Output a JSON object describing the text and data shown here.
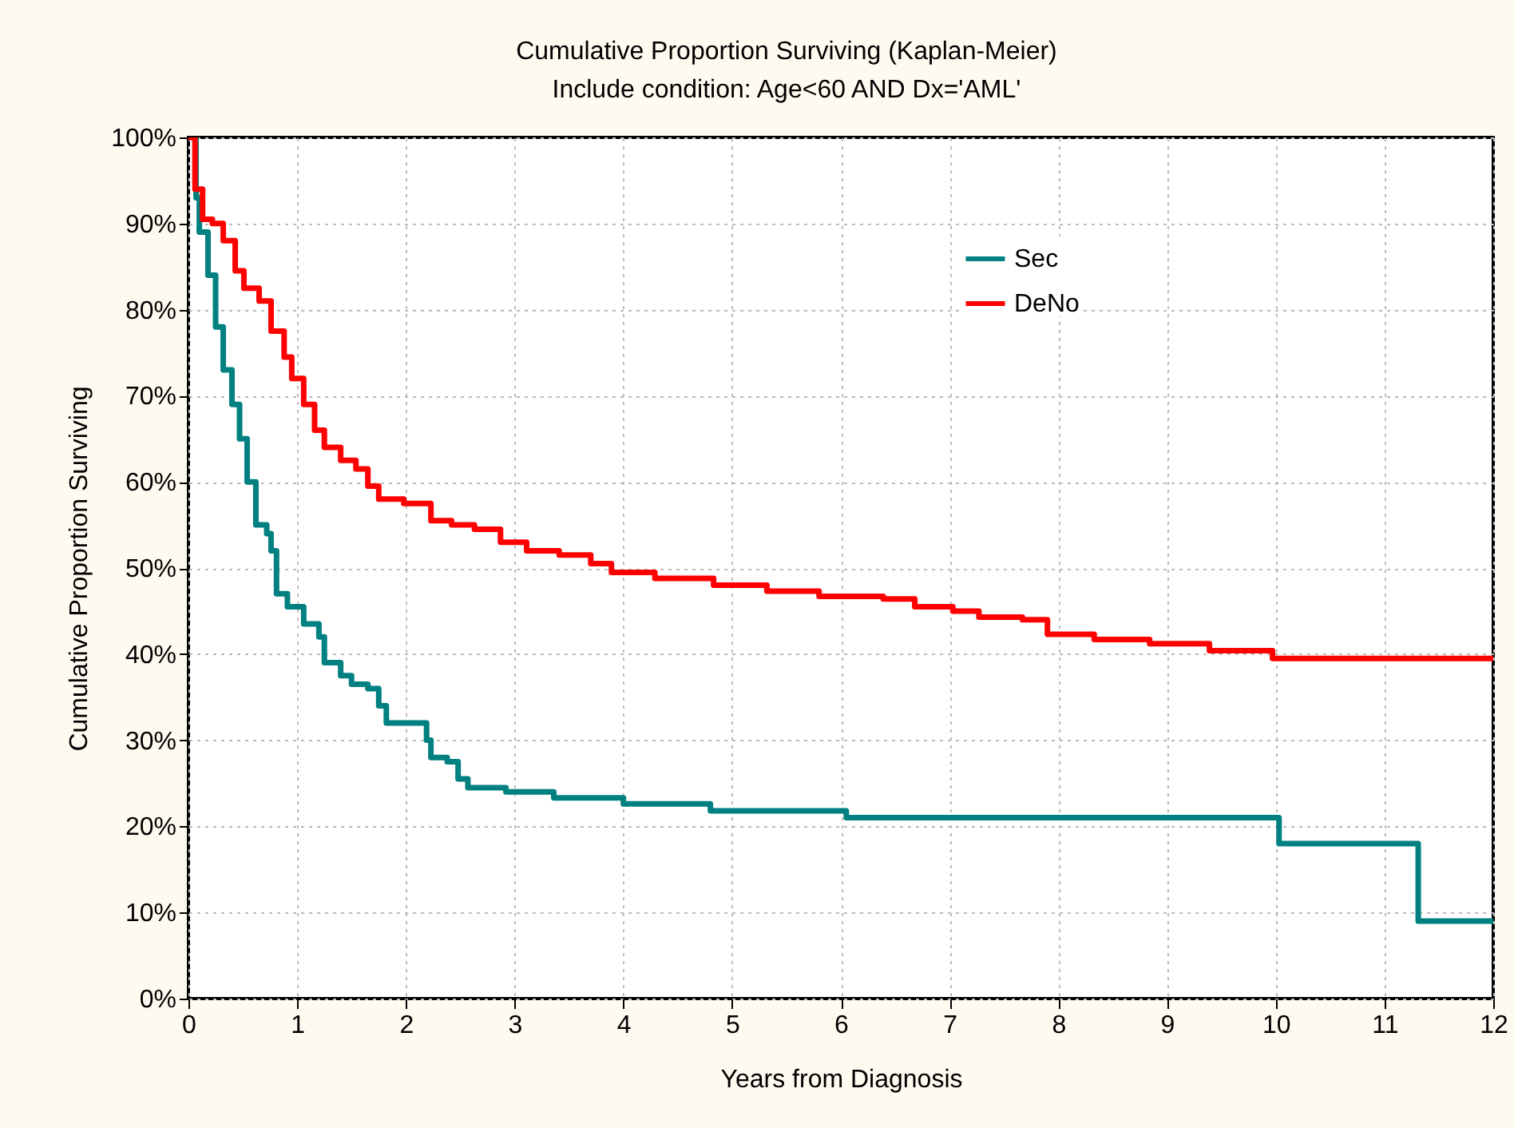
{
  "chart_data": {
    "type": "step",
    "title": "Cumulative Proportion Surviving (Kaplan-Meier)",
    "subtitle": "Include condition: Age<60 AND Dx='AML'",
    "xlabel": "Years from Diagnosis",
    "ylabel": "Cumulative Proportion Surviving",
    "xlim": [
      0,
      12
    ],
    "xticks": [
      0,
      1,
      2,
      3,
      4,
      5,
      6,
      7,
      8,
      9,
      10,
      11,
      12
    ],
    "ylim": [
      0,
      100
    ],
    "yticks": [
      {
        "value": 0,
        "label": "0%"
      },
      {
        "value": 10,
        "label": "10%"
      },
      {
        "value": 20,
        "label": "20%"
      },
      {
        "value": 30,
        "label": "30%"
      },
      {
        "value": 40,
        "label": "40%"
      },
      {
        "value": 50,
        "label": "50%"
      },
      {
        "value": 60,
        "label": "60%"
      },
      {
        "value": 70,
        "label": "70%"
      },
      {
        "value": 80,
        "label": "80%"
      },
      {
        "value": 90,
        "label": "90%"
      },
      {
        "value": 100,
        "label": "100%"
      }
    ],
    "grid": true,
    "legend": "top right",
    "line_style": "solid",
    "series": [
      {
        "name": "Sec",
        "color": "#008080",
        "x": [
          0,
          0.07,
          0.1,
          0.18,
          0.25,
          0.32,
          0.4,
          0.47,
          0.54,
          0.62,
          0.72,
          0.76,
          0.81,
          0.91,
          1.06,
          1.2,
          1.25,
          1.4,
          1.5,
          1.65,
          1.75,
          1.82,
          2.04,
          2.19,
          2.23,
          2.38,
          2.48,
          2.57,
          2.92,
          3.36,
          4.0,
          4.8,
          6.05,
          10.03,
          11.31,
          12
        ],
        "values": [
          100,
          93,
          89,
          84,
          78,
          73,
          69,
          65,
          60,
          55,
          54,
          52,
          47,
          45.5,
          43.5,
          42,
          39,
          37.5,
          36.5,
          36,
          34,
          32,
          32,
          30,
          28,
          27.5,
          25.5,
          24.5,
          24,
          23.3,
          22.6,
          21.8,
          21,
          18,
          9,
          9
        ]
      },
      {
        "name": "DeNo",
        "color": "#ff0000",
        "x": [
          0,
          0.06,
          0.13,
          0.22,
          0.32,
          0.43,
          0.51,
          0.65,
          0.76,
          0.88,
          0.95,
          1.06,
          1.16,
          1.25,
          1.4,
          1.54,
          1.65,
          1.75,
          1.98,
          2.23,
          2.42,
          2.63,
          2.87,
          3.11,
          3.41,
          3.7,
          3.89,
          4.29,
          4.83,
          5.32,
          5.8,
          6.39,
          6.68,
          7.03,
          7.27,
          7.67,
          7.9,
          8.33,
          8.84,
          9.39,
          9.97,
          12
        ],
        "values": [
          100,
          94,
          90.5,
          90,
          88,
          84.5,
          82.5,
          81,
          77.5,
          74.5,
          72,
          69,
          66,
          64,
          62.5,
          61.5,
          59.5,
          58,
          57.5,
          55.5,
          55,
          54.5,
          53,
          52,
          51.5,
          50.5,
          49.5,
          48.8,
          48,
          47.3,
          46.7,
          46.4,
          45.5,
          45,
          44.3,
          44,
          42.3,
          41.7,
          41.2,
          40.4,
          39.5,
          39.5
        ]
      }
    ]
  }
}
